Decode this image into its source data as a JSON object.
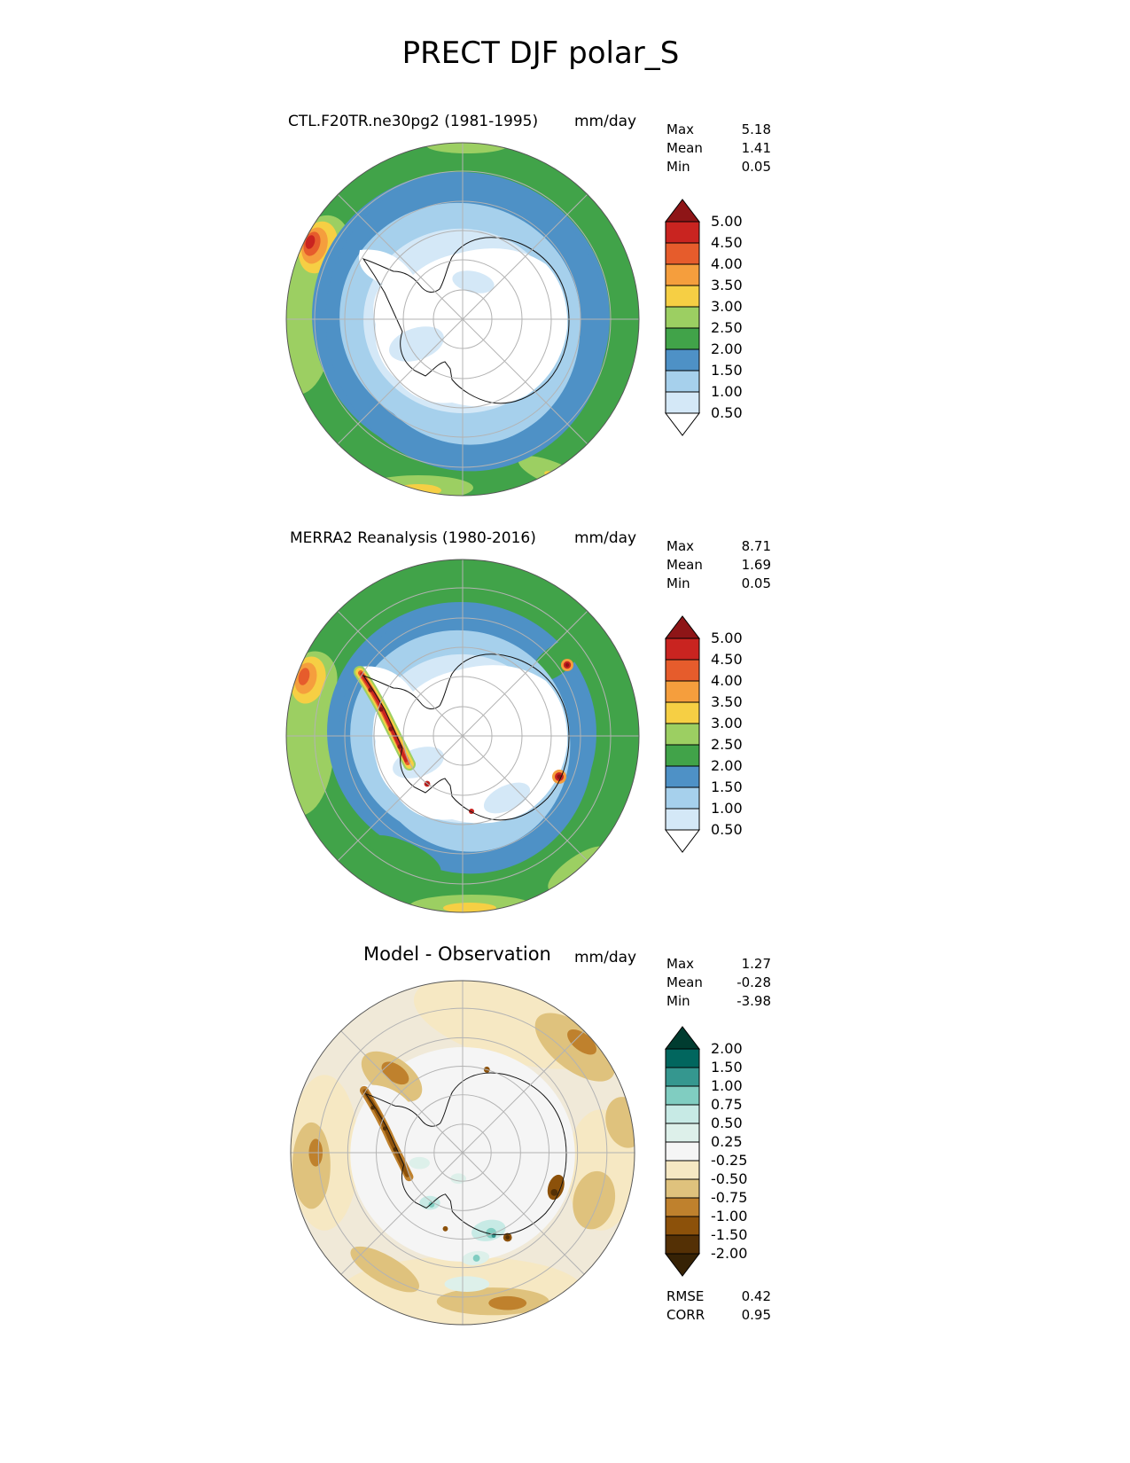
{
  "title": "PRECT DJF polar_S",
  "panels": [
    {
      "id": "model",
      "title": "CTL.F20TR.ne30pg2 (1981-1995)",
      "units": "mm/day",
      "stats": [
        {
          "label": "Max",
          "value": "5.18"
        },
        {
          "label": "Mean",
          "value": "1.41"
        },
        {
          "label": "Min",
          "value": "0.05"
        }
      ],
      "colorbar": {
        "levels": [
          "0.50",
          "1.00",
          "1.50",
          "2.00",
          "2.50",
          "3.00",
          "3.50",
          "4.00",
          "4.50",
          "5.00"
        ],
        "colors_bottom_to_top": [
          "#ffffff",
          "#d4e8f7",
          "#a6d0ec",
          "#4e91c6",
          "#41a349",
          "#9ccf62",
          "#f6cf44",
          "#f59e3d",
          "#e65c2c",
          "#c92420",
          "#8e1517"
        ]
      }
    },
    {
      "id": "obs",
      "title": "MERRA2 Reanalysis (1980-2016)",
      "units": "mm/day",
      "stats": [
        {
          "label": "Max",
          "value": "8.71"
        },
        {
          "label": "Mean",
          "value": "1.69"
        },
        {
          "label": "Min",
          "value": "0.05"
        }
      ],
      "colorbar": {
        "levels": [
          "0.50",
          "1.00",
          "1.50",
          "2.00",
          "2.50",
          "3.00",
          "3.50",
          "4.00",
          "4.50",
          "5.00"
        ],
        "colors_bottom_to_top": [
          "#ffffff",
          "#d4e8f7",
          "#a6d0ec",
          "#4e91c6",
          "#41a349",
          "#9ccf62",
          "#f6cf44",
          "#f59e3d",
          "#e65c2c",
          "#c92420",
          "#8e1517"
        ]
      }
    },
    {
      "id": "diff",
      "title": "Model - Observation",
      "units": "mm/day",
      "stats": [
        {
          "label": "Max",
          "value": "1.27"
        },
        {
          "label": "Mean",
          "value": "-0.28"
        },
        {
          "label": "Min",
          "value": "-3.98"
        }
      ],
      "colorbar": {
        "levels": [
          "-2.00",
          "-1.50",
          "-1.00",
          "-0.75",
          "-0.50",
          "-0.25",
          "0.25",
          "0.50",
          "0.75",
          "1.00",
          "1.50",
          "2.00"
        ],
        "colors_bottom_to_top": [
          "#362205",
          "#543005",
          "#8c510a",
          "#bf812d",
          "#dfc27d",
          "#f6e8c3",
          "#f5f5f5",
          "#ddf0ea",
          "#c7eae5",
          "#80cdc1",
          "#35978f",
          "#01665e",
          "#003c30"
        ]
      },
      "extra_stats": [
        {
          "label": "RMSE",
          "value": "0.42"
        },
        {
          "label": "CORR",
          "value": "0.95"
        }
      ]
    }
  ],
  "chart_data": [
    {
      "type": "heatmap",
      "map_projection": "south_polar_stereographic",
      "variable": "PRECT",
      "season": "DJF",
      "region": "polar_S",
      "series_name": "CTL.F20TR.ne30pg2 (1981-1995)",
      "units": "mm/day",
      "stats": {
        "max": 5.18,
        "mean": 1.41,
        "min": 0.05
      },
      "contour_levels": [
        0.5,
        1.0,
        1.5,
        2.0,
        2.5,
        3.0,
        3.5,
        4.0,
        4.5,
        5.0
      ],
      "palette_bottom_to_top": [
        "#ffffff",
        "#d4e8f7",
        "#a6d0ec",
        "#4e91c6",
        "#41a349",
        "#9ccf62",
        "#f6cf44",
        "#f59e3d",
        "#e65c2c",
        "#c92420",
        "#8e1517"
      ],
      "pattern_summary": "White (<0.5) over Antarctic interior, light-to-mid blue band (0.5-2.0) over coast and adjacent ocean, green band (2.0-3.0) over outer Southern Ocean, isolated yellow-orange-red maximum (3.0->5.0) at upper-left map edge near southern South America, small yellow patches at lower map edge"
    },
    {
      "type": "heatmap",
      "map_projection": "south_polar_stereographic",
      "variable": "PRECT",
      "season": "DJF",
      "region": "polar_S",
      "series_name": "MERRA2 Reanalysis (1980-2016)",
      "units": "mm/day",
      "stats": {
        "max": 8.71,
        "mean": 1.69,
        "min": 0.05
      },
      "contour_levels": [
        0.5,
        1.0,
        1.5,
        2.0,
        2.5,
        3.0,
        3.5,
        4.0,
        4.5,
        5.0
      ],
      "palette_bottom_to_top": [
        "#ffffff",
        "#d4e8f7",
        "#a6d0ec",
        "#4e91c6",
        "#41a349",
        "#9ccf62",
        "#f6cf44",
        "#f59e3d",
        "#e65c2c",
        "#c92420",
        "#8e1517"
      ],
      "pattern_summary": "Broader green band (2.0-3.0) over Southern Ocean, narrower blue ring, white interior; intense red/dark-red maxima (>4.5) along Antarctic Peninsula and isolated spots on coastal East Antarctica; orange-yellow maximum at left map edge"
    },
    {
      "type": "heatmap",
      "map_projection": "south_polar_stereographic",
      "variable": "PRECT bias (Model - Observation)",
      "season": "DJF",
      "region": "polar_S",
      "series_name": "Model - Observation",
      "units": "mm/day",
      "stats": {
        "max": 1.27,
        "mean": -0.28,
        "min": -3.98
      },
      "rmse": 0.42,
      "corr": 0.95,
      "contour_levels": [
        -2.0,
        -1.5,
        -1.0,
        -0.75,
        -0.5,
        -0.25,
        0.25,
        0.5,
        0.75,
        1.0,
        1.5,
        2.0
      ],
      "palette_bottom_to_top": [
        "#362205",
        "#543005",
        "#8c510a",
        "#bf812d",
        "#dfc27d",
        "#f6e8c3",
        "#f5f5f5",
        "#ddf0ea",
        "#c7eae5",
        "#80cdc1",
        "#35978f",
        "#01665e",
        "#003c30"
      ],
      "pattern_summary": "Near-zero (off-white) over Antarctic interior; weak dry bias (cream/tan, -0.25 to -1.0) over much of the Southern Ocean ring; strong dry bias (dark brown, <-1.5) along the Antarctic Peninsula and coastal East Antarctica; small wet bias (pale teal, +0.25 to +1.0) near the Ross Sea and nearby coastal ocean"
    }
  ]
}
